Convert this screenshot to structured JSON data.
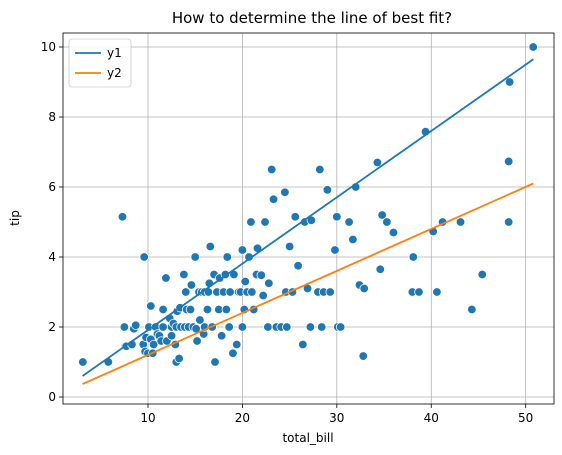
{
  "chart_data": {
    "type": "scatter",
    "title": "How to determine the line of best fit?",
    "xlabel": "total_bill",
    "ylabel": "tip",
    "xlim": [
      1.0,
      53.0
    ],
    "ylim": [
      -0.2,
      10.4
    ],
    "xticks": [
      10,
      20,
      30,
      40,
      50
    ],
    "yticks": [
      0,
      2,
      4,
      6,
      8,
      10
    ],
    "grid": true,
    "legend_position": "top-left",
    "colors": {
      "points": "#1f77b4",
      "y1": "#1f77b4",
      "y2": "#ff7f0e"
    },
    "lines": [
      {
        "name": "y1",
        "x": [
          3.07,
          50.81
        ],
        "y": [
          0.6,
          9.65
        ]
      },
      {
        "name": "y2",
        "x": [
          3.07,
          50.81
        ],
        "y": [
          0.37,
          6.1
        ]
      }
    ],
    "points": [
      [
        3.1,
        1.0
      ],
      [
        5.8,
        1.0
      ],
      [
        7.3,
        5.15
      ],
      [
        7.5,
        2.0
      ],
      [
        7.6,
        1.45
      ],
      [
        7.7,
        1.45
      ],
      [
        8.3,
        1.5
      ],
      [
        8.5,
        1.95
      ],
      [
        8.7,
        2.05
      ],
      [
        9.5,
        1.5
      ],
      [
        9.6,
        4.0
      ],
      [
        9.7,
        1.3
      ],
      [
        9.8,
        1.7
      ],
      [
        10.0,
        1.25
      ],
      [
        10.1,
        2.0
      ],
      [
        10.3,
        1.65
      ],
      [
        10.3,
        2.6
      ],
      [
        10.5,
        1.25
      ],
      [
        10.6,
        1.5
      ],
      [
        10.8,
        2.0
      ],
      [
        11.0,
        1.8
      ],
      [
        11.2,
        1.75
      ],
      [
        11.4,
        1.6
      ],
      [
        11.6,
        2.0
      ],
      [
        11.6,
        2.5
      ],
      [
        11.9,
        3.4
      ],
      [
        12.0,
        1.6
      ],
      [
        12.3,
        2.25
      ],
      [
        12.5,
        2.0
      ],
      [
        12.5,
        1.75
      ],
      [
        12.7,
        2.1
      ],
      [
        12.9,
        1.5
      ],
      [
        13.0,
        1.0
      ],
      [
        13.0,
        2.0
      ],
      [
        13.1,
        2.45
      ],
      [
        13.3,
        1.1
      ],
      [
        13.4,
        2.55
      ],
      [
        13.5,
        2.0
      ],
      [
        13.8,
        3.5
      ],
      [
        13.9,
        2.0
      ],
      [
        14.0,
        3.0
      ],
      [
        14.1,
        2.5
      ],
      [
        14.3,
        2.0
      ],
      [
        14.5,
        2.5
      ],
      [
        14.6,
        3.2
      ],
      [
        14.8,
        2.0
      ],
      [
        15.0,
        4.0
      ],
      [
        15.1,
        1.95
      ],
      [
        15.2,
        1.6
      ],
      [
        15.4,
        3.0
      ],
      [
        15.5,
        2.2
      ],
      [
        15.7,
        3.0
      ],
      [
        15.9,
        1.8
      ],
      [
        16.0,
        2.0
      ],
      [
        16.0,
        3.0
      ],
      [
        16.3,
        2.5
      ],
      [
        16.4,
        3.0
      ],
      [
        16.5,
        3.25
      ],
      [
        16.6,
        4.3
      ],
      [
        16.8,
        2.0
      ],
      [
        17.0,
        3.5
      ],
      [
        17.1,
        1.0
      ],
      [
        17.3,
        3.0
      ],
      [
        17.5,
        2.5
      ],
      [
        17.6,
        3.4
      ],
      [
        17.8,
        1.75
      ],
      [
        18.0,
        3.0
      ],
      [
        18.2,
        3.5
      ],
      [
        18.3,
        2.5
      ],
      [
        18.4,
        4.0
      ],
      [
        18.6,
        2.0
      ],
      [
        18.7,
        3.0
      ],
      [
        19.0,
        1.25
      ],
      [
        19.1,
        3.5
      ],
      [
        19.4,
        1.5
      ],
      [
        19.6,
        3.0
      ],
      [
        19.8,
        3.0
      ],
      [
        20.0,
        2.0
      ],
      [
        20.0,
        4.2
      ],
      [
        20.2,
        2.5
      ],
      [
        20.3,
        3.3
      ],
      [
        20.5,
        3.0
      ],
      [
        20.7,
        4.0
      ],
      [
        20.9,
        5.0
      ],
      [
        21.0,
        3.0
      ],
      [
        21.2,
        2.5
      ],
      [
        21.5,
        3.5
      ],
      [
        21.6,
        4.25
      ],
      [
        22.0,
        3.48
      ],
      [
        22.2,
        2.9
      ],
      [
        22.4,
        5.0
      ],
      [
        22.7,
        2.0
      ],
      [
        22.8,
        3.25
      ],
      [
        23.1,
        6.5
      ],
      [
        23.3,
        5.65
      ],
      [
        23.6,
        2.0
      ],
      [
        24.1,
        2.0
      ],
      [
        24.5,
        5.85
      ],
      [
        24.6,
        3.0
      ],
      [
        24.7,
        2.0
      ],
      [
        25.0,
        4.3
      ],
      [
        25.3,
        3.0
      ],
      [
        25.6,
        5.15
      ],
      [
        25.9,
        3.75
      ],
      [
        26.4,
        1.5
      ],
      [
        26.6,
        5.0
      ],
      [
        26.9,
        3.1
      ],
      [
        27.2,
        2.0
      ],
      [
        27.3,
        5.05
      ],
      [
        28.0,
        3.0
      ],
      [
        28.2,
        6.5
      ],
      [
        28.4,
        2.0
      ],
      [
        28.6,
        3.0
      ],
      [
        29.0,
        5.92
      ],
      [
        29.3,
        3.0
      ],
      [
        29.8,
        4.2
      ],
      [
        30.0,
        5.15
      ],
      [
        30.1,
        2.0
      ],
      [
        30.4,
        2.0
      ],
      [
        31.3,
        5.0
      ],
      [
        31.7,
        4.5
      ],
      [
        32.0,
        6.0
      ],
      [
        32.4,
        3.2
      ],
      [
        32.8,
        1.17
      ],
      [
        32.9,
        3.1
      ],
      [
        34.3,
        6.7
      ],
      [
        34.6,
        3.65
      ],
      [
        34.8,
        5.2
      ],
      [
        35.3,
        5.0
      ],
      [
        36.0,
        4.7
      ],
      [
        38.0,
        3.0
      ],
      [
        38.1,
        4.0
      ],
      [
        38.7,
        3.0
      ],
      [
        39.4,
        7.58
      ],
      [
        40.2,
        4.73
      ],
      [
        40.6,
        3.0
      ],
      [
        41.2,
        5.0
      ],
      [
        43.1,
        5.0
      ],
      [
        44.3,
        2.5
      ],
      [
        45.4,
        3.5
      ],
      [
        48.2,
        6.73
      ],
      [
        48.3,
        9.0
      ],
      [
        48.2,
        5.0
      ],
      [
        50.8,
        10.0
      ]
    ]
  }
}
